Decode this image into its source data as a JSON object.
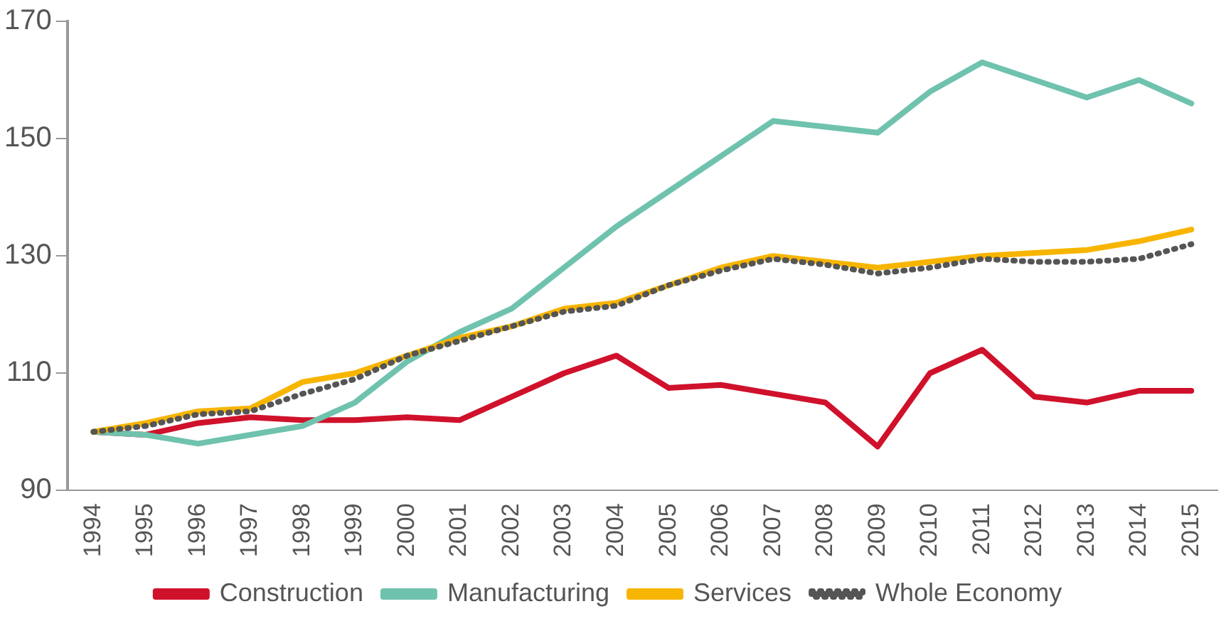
{
  "chart_data": {
    "type": "line",
    "categories": [
      "1994",
      "1995",
      "1996",
      "1997",
      "1998",
      "1999",
      "2000",
      "2001",
      "2002",
      "2003",
      "2004",
      "2005",
      "2006",
      "2007",
      "2008",
      "2009",
      "2010",
      "2011",
      "2012",
      "2013",
      "2014",
      "2015"
    ],
    "series": [
      {
        "name": "Construction",
        "color": "#d0112b",
        "values": [
          100,
          99.5,
          101.5,
          102.5,
          102,
          102,
          102.5,
          102,
          106,
          110,
          113,
          107.5,
          108,
          106.5,
          105,
          97.5,
          110,
          114,
          106,
          105,
          107,
          107
        ]
      },
      {
        "name": "Manufacturing",
        "color": "#6fc2ae",
        "values": [
          100,
          99.5,
          98,
          99.5,
          101,
          105,
          112,
          117,
          121,
          128,
          135,
          141,
          147,
          153,
          152,
          151,
          158,
          163,
          160,
          157,
          160,
          156
        ]
      },
      {
        "name": "Services",
        "color": "#f7b500",
        "values": [
          100,
          101.5,
          103.5,
          104,
          108.5,
          110,
          113,
          116,
          118,
          121,
          122,
          125,
          128,
          130,
          129,
          128,
          129,
          130,
          130.5,
          131,
          132.5,
          134.5
        ]
      },
      {
        "name": "Whole Economy",
        "color": "#555555",
        "line_style": "dotted",
        "values": [
          100,
          101,
          103,
          103.5,
          106.5,
          109,
          113,
          115.5,
          118,
          120.5,
          121.5,
          125,
          127.5,
          129.5,
          128.5,
          127,
          128,
          129.5,
          129,
          129,
          129.5,
          132
        ]
      }
    ],
    "ylim": [
      90,
      170
    ],
    "yticks": [
      90,
      110,
      130,
      150,
      170
    ],
    "grid": false,
    "legend": "bottom",
    "marker": "none",
    "line_style": "solid"
  }
}
